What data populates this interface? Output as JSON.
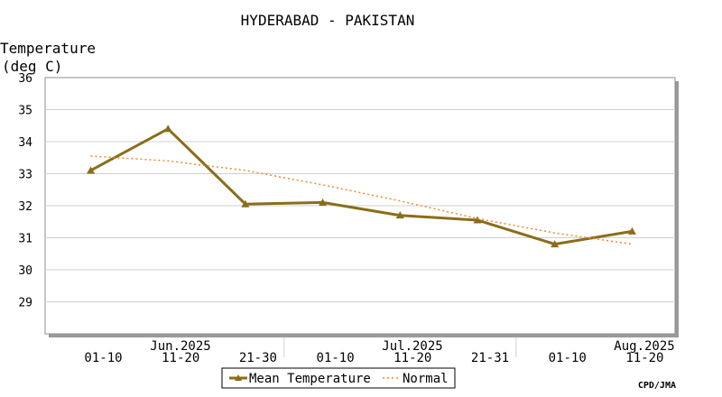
{
  "chart_data": {
    "type": "line",
    "title": "HYDERABAD - PAKISTAN",
    "ylabel_line1": "Temperature",
    "ylabel_line2": "(deg C)",
    "ylim": [
      28,
      36
    ],
    "yticks": [
      29,
      30,
      31,
      32,
      33,
      34,
      35,
      36
    ],
    "grid": true,
    "categories": [
      "01-10",
      "11-20",
      "21-30",
      "01-10",
      "11-20",
      "21-31",
      "01-10",
      "11-20"
    ],
    "month_labels": [
      "Jun.2025",
      "Jul.2025",
      "Aug.2025"
    ],
    "series": [
      {
        "name": "Mean Temperature",
        "color": "#8a6d1a",
        "style": "solid-triangle",
        "values": [
          33.1,
          34.4,
          32.05,
          32.1,
          31.7,
          31.55,
          30.8,
          31.2
        ]
      },
      {
        "name": "Normal",
        "color": "#f08a2a",
        "style": "dotted",
        "values": [
          33.55,
          33.4,
          33.1,
          32.65,
          32.15,
          31.6,
          31.15,
          30.8
        ]
      }
    ],
    "legend_position": "bottom-center",
    "credit": "CPD/JMA"
  }
}
